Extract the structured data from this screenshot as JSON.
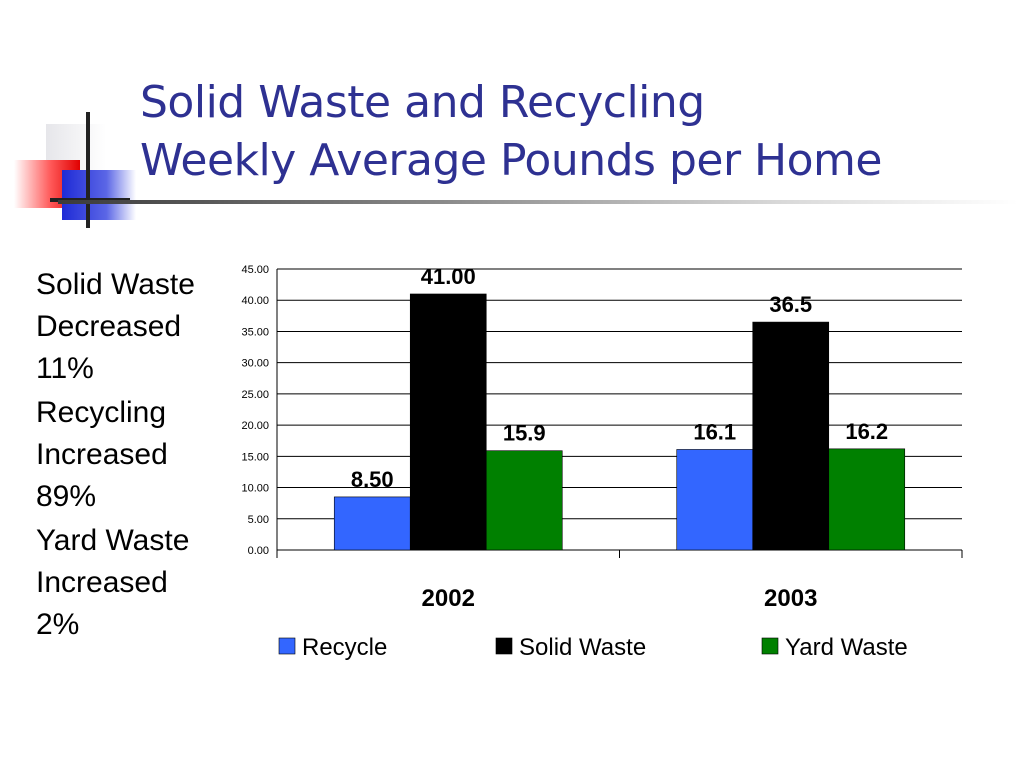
{
  "slide": {
    "title_line1": "Solid Waste and Recycling",
    "title_line2": "Weekly Average Pounds per Home",
    "logo_icon": "crosshair-squares-logo-icon"
  },
  "bullets": [
    {
      "line1": "Solid Waste",
      "line2": "Decreased",
      "line3": "11%"
    },
    {
      "line1": "Recycling",
      "line2": "Increased",
      "line3": "89%"
    },
    {
      "line1": "Yard Waste",
      "line2": "Increased",
      "line3": "2%"
    }
  ],
  "colors": {
    "title": "#2e3192",
    "recycle": "#3366ff",
    "solid_waste": "#000000",
    "yard_waste": "#008000"
  },
  "chart_data": {
    "type": "bar",
    "title": "",
    "xlabel": "",
    "ylabel": "",
    "categories": [
      "2002",
      "2003"
    ],
    "series": [
      {
        "name": "Recycle",
        "values": [
          8.5,
          16.1
        ],
        "labels": [
          "8.50",
          "16.1"
        ],
        "color": "#3366ff"
      },
      {
        "name": "Solid Waste",
        "values": [
          41.0,
          36.5
        ],
        "labels": [
          "41.00",
          "36.5"
        ],
        "color": "#000000"
      },
      {
        "name": "Yard Waste",
        "values": [
          15.9,
          16.2
        ],
        "labels": [
          "15.9",
          "16.2"
        ],
        "color": "#008000"
      }
    ],
    "ylim": [
      0,
      45
    ],
    "yticks": [
      "0.00",
      "5.00",
      "10.00",
      "15.00",
      "20.00",
      "25.00",
      "30.00",
      "35.00",
      "40.00",
      "45.00"
    ],
    "grid": true,
    "legend": "bottom"
  }
}
